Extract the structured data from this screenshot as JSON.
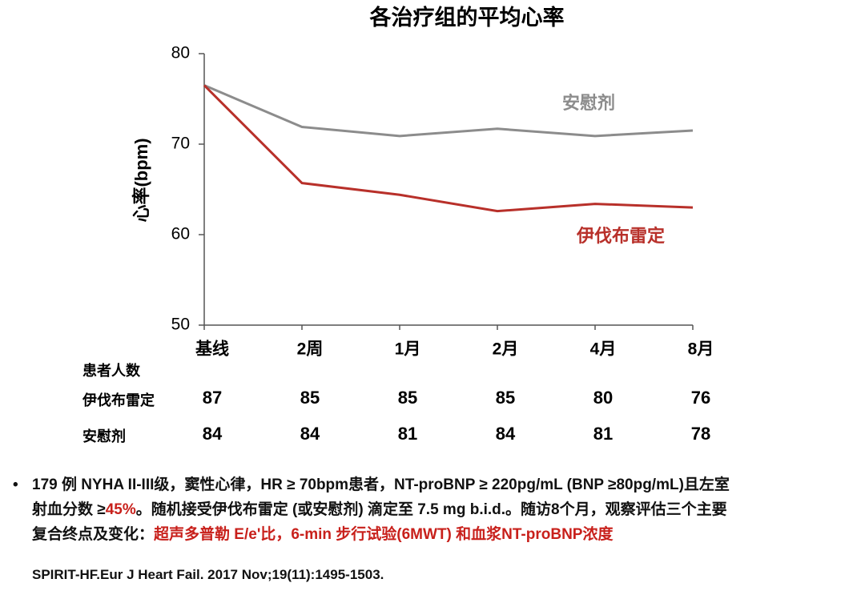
{
  "chart_data": {
    "type": "line",
    "title": "各治疗组的平均心率",
    "y_label": "心率(bpm)",
    "categories": [
      "基线",
      "2周",
      "1月",
      "2月",
      "4月",
      "8月"
    ],
    "series": [
      {
        "name": "安慰剂",
        "color": "#8c8c8c",
        "values": [
          76.5,
          71.9,
          70.9,
          71.7,
          70.9,
          71.5
        ]
      },
      {
        "name": "伊伐布雷定",
        "color": "#b8302a",
        "values": [
          76.5,
          65.7,
          64.4,
          62.6,
          63.4,
          63.0
        ]
      }
    ],
    "ylim": [
      50,
      80
    ],
    "yticks": [
      50,
      60,
      70,
      80
    ],
    "grid": false
  },
  "table": {
    "title": "患者人数",
    "rows": [
      {
        "name": "伊伐布雷定",
        "values": [
          87,
          85,
          85,
          85,
          80,
          76
        ]
      },
      {
        "name": "安慰剂",
        "values": [
          84,
          84,
          81,
          84,
          81,
          78
        ]
      }
    ]
  },
  "notes": {
    "lines": [
      [
        {
          "text": "179 例 NYHA II-III级，窦性心律，HR ≥ 70bpm患者，NT-proBNP ≥ 220pg/mL (BNP ≥80pg/mL)且左室",
          "highlight": false
        }
      ],
      [
        {
          "text": "射血分数 ≥",
          "highlight": false
        },
        {
          "text": "45%",
          "highlight": true
        },
        {
          "text": "。随机接受伊伐布雷定 (或安慰剂) 滴定至 7.5 mg b.i.d.。随访8个月，观察评估三个主要",
          "highlight": false
        }
      ],
      [
        {
          "text": "复合终点及变化：",
          "highlight": false
        },
        {
          "text": "超声多普勒 E/e'比，6-min 步行试验(6MWT) 和血浆NT-proBNP浓度",
          "highlight": true
        }
      ]
    ]
  },
  "citation": "SPIRIT-HF.Eur J Heart Fail. 2017 Nov;19(11):1495-1503."
}
